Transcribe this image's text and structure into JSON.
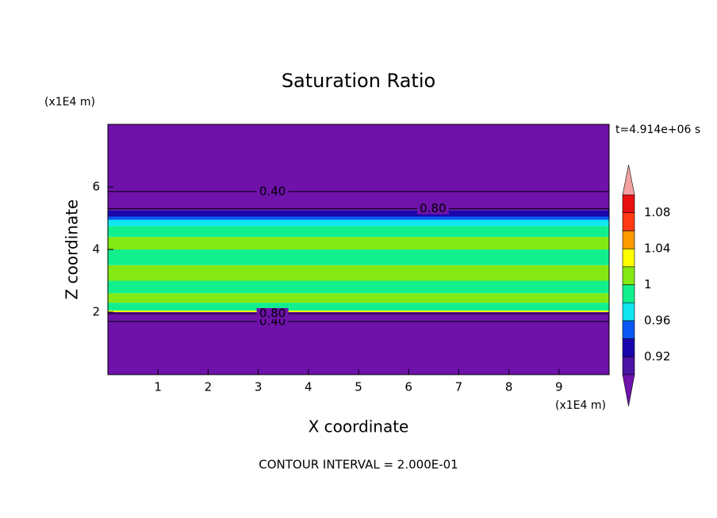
{
  "chart_data": {
    "type": "contour",
    "title": "Saturation Ratio",
    "xlabel": "X coordinate",
    "ylabel": "Z coordinate",
    "xunit": "(x1E4 m)",
    "yunit": "(x1E4 m)",
    "time_label": "t=4.914e+06 s",
    "footer": "CONTOUR INTERVAL = 2.000E-01",
    "xlim": [
      0,
      10
    ],
    "ylim": [
      0,
      8
    ],
    "xticks": [
      1,
      2,
      3,
      4,
      5,
      6,
      7,
      8,
      9
    ],
    "yticks": [
      2,
      4,
      6
    ],
    "colorbar": {
      "levels": [
        0.9,
        0.92,
        0.94,
        0.96,
        0.98,
        1,
        1.02,
        1.04,
        1.06,
        1.08,
        1.1
      ],
      "colors": [
        "#4a14a4",
        "#1a06aa",
        "#0a58f6",
        "#10e6f2",
        "#12f08e",
        "#84e812",
        "#ffff00",
        "#ff9a00",
        "#ff3a14",
        "#e81010"
      ],
      "under_color": "#6e12aa",
      "over_color": "#f4a0a0",
      "ticks": [
        {
          "value": 0.92,
          "label": "0.92"
        },
        {
          "value": 0.96,
          "label": "0.96"
        },
        1,
        {
          "value": 1.04,
          "label": "1.04"
        },
        {
          "value": 1.08,
          "label": "1.08"
        }
      ]
    },
    "bands": [
      {
        "z": [
          0,
          2.0
        ],
        "value": 0.5
      },
      {
        "z": [
          2.0,
          2.05
        ],
        "value": 1.03
      },
      {
        "z": [
          2.05,
          2.3
        ],
        "value": 0.99
      },
      {
        "z": [
          2.3,
          2.6
        ],
        "value": 1.01
      },
      {
        "z": [
          2.6,
          3.0
        ],
        "value": 0.99
      },
      {
        "z": [
          3.0,
          3.5
        ],
        "value": 1.01
      },
      {
        "z": [
          3.5,
          4.0
        ],
        "value": 0.99
      },
      {
        "z": [
          4.0,
          4.4
        ],
        "value": 1.01
      },
      {
        "z": [
          4.4,
          4.75
        ],
        "value": 0.99
      },
      {
        "z": [
          4.75,
          4.95
        ],
        "value": 0.97
      },
      {
        "z": [
          4.95,
          5.05
        ],
        "value": 0.95
      },
      {
        "z": [
          5.05,
          5.25
        ],
        "value": 0.93
      },
      {
        "z": [
          5.25,
          8
        ],
        "value": 0.5
      }
    ],
    "contours": [
      {
        "value": 0.4,
        "z": 1.7,
        "label": "0.40"
      },
      {
        "value": 0.8,
        "z": 1.95,
        "label": "0.80"
      },
      {
        "value": 0.8,
        "z": 5.3,
        "label": "0.80"
      },
      {
        "value": 0.4,
        "z": 5.85,
        "label": "0.40"
      }
    ]
  }
}
